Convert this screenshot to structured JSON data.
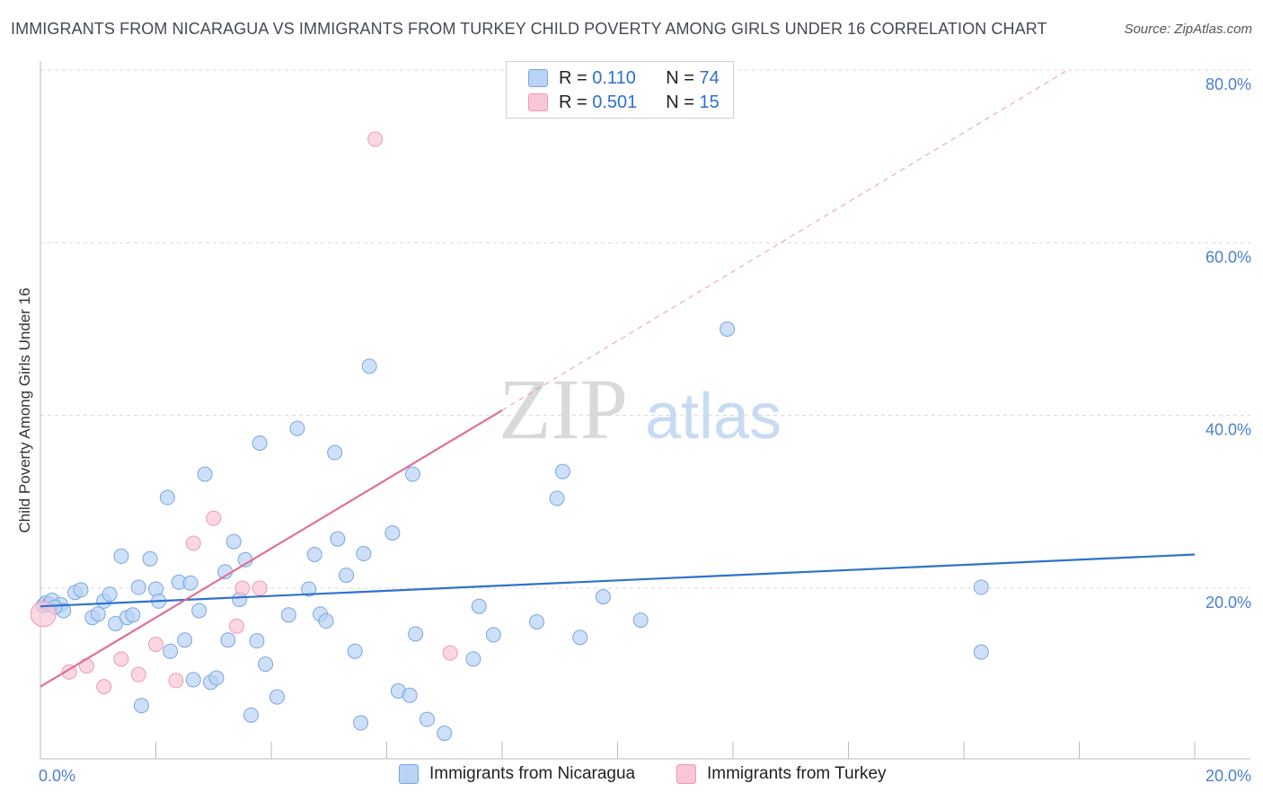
{
  "title": "IMMIGRANTS FROM NICARAGUA VS IMMIGRANTS FROM TURKEY CHILD POVERTY AMONG GIRLS UNDER 16 CORRELATION CHART",
  "source": "Source: ZipAtlas.com",
  "watermark": {
    "zip": "ZIP",
    "atlas": "atlas"
  },
  "colors": {
    "nicaragua_fill": "#b9d3f5",
    "nicaragua_stroke": "#7aa6e0",
    "nicaragua_line": "#2f72cc",
    "turkey_fill": "#f9c6d6",
    "turkey_stroke": "#ee9ab5",
    "turkey_line": "#e07098",
    "axis_label": "#4a7fd0",
    "grid": "#d8d8d8"
  },
  "legend": {
    "nicaragua": {
      "r_label": "R =",
      "r_value": "0.110",
      "n_label": "N =",
      "n_value": "74"
    },
    "turkey": {
      "r_label": "R =",
      "r_value": "0.501",
      "n_label": "N =",
      "n_value": "15"
    }
  },
  "chart_data": {
    "type": "scatter",
    "title": "IMMIGRANTS FROM NICARAGUA VS IMMIGRANTS FROM TURKEY CHILD POVERTY AMONG GIRLS UNDER 16 CORRELATION CHART",
    "xlabel": "",
    "ylabel": "Child Poverty Among Girls Under 16",
    "xlim": [
      0,
      20
    ],
    "ylim": [
      0,
      82
    ],
    "x_tick_labels": [
      "0.0%",
      "20.0%"
    ],
    "y_ticks": [
      20,
      40,
      60,
      80
    ],
    "y_tick_labels": [
      "20.0%",
      "40.0%",
      "60.0%",
      "80.0%"
    ],
    "grid": true,
    "legend_position": "top-center",
    "series": [
      {
        "name": "Immigrants from Nicaragua",
        "r": 0.11,
        "n": 74,
        "trend": {
          "x": [
            0,
            20
          ],
          "y": [
            17.9,
            23.9
          ]
        },
        "points": [
          [
            0.05,
            18.0
          ],
          [
            0.1,
            18.3
          ],
          [
            0.15,
            18.1
          ],
          [
            0.2,
            18.6
          ],
          [
            0.35,
            18.1
          ],
          [
            0.4,
            17.4
          ],
          [
            0.6,
            19.5
          ],
          [
            0.7,
            19.8
          ],
          [
            0.9,
            16.6
          ],
          [
            1.0,
            17.0
          ],
          [
            1.1,
            18.5
          ],
          [
            1.2,
            19.3
          ],
          [
            1.3,
            15.9
          ],
          [
            1.4,
            23.7
          ],
          [
            1.5,
            16.6
          ],
          [
            1.6,
            16.9
          ],
          [
            1.7,
            20.1
          ],
          [
            1.75,
            6.4
          ],
          [
            1.9,
            23.4
          ],
          [
            2.0,
            19.9
          ],
          [
            2.05,
            18.5
          ],
          [
            2.2,
            30.5
          ],
          [
            2.25,
            12.7
          ],
          [
            2.4,
            20.7
          ],
          [
            2.5,
            14.0
          ],
          [
            2.6,
            20.6
          ],
          [
            2.65,
            9.4
          ],
          [
            2.75,
            17.4
          ],
          [
            2.85,
            33.2
          ],
          [
            2.95,
            9.1
          ],
          [
            3.05,
            9.6
          ],
          [
            3.2,
            21.9
          ],
          [
            3.25,
            14.0
          ],
          [
            3.35,
            25.4
          ],
          [
            3.45,
            18.7
          ],
          [
            3.55,
            23.3
          ],
          [
            3.65,
            5.3
          ],
          [
            3.75,
            13.9
          ],
          [
            3.8,
            36.8
          ],
          [
            3.9,
            11.2
          ],
          [
            4.1,
            7.4
          ],
          [
            4.3,
            16.9
          ],
          [
            4.45,
            38.5
          ],
          [
            4.65,
            19.9
          ],
          [
            4.75,
            23.9
          ],
          [
            4.85,
            17.0
          ],
          [
            4.95,
            16.2
          ],
          [
            5.1,
            35.7
          ],
          [
            5.15,
            25.7
          ],
          [
            5.3,
            21.5
          ],
          [
            5.45,
            12.7
          ],
          [
            5.55,
            4.4
          ],
          [
            5.6,
            24.0
          ],
          [
            5.7,
            45.7
          ],
          [
            6.1,
            26.4
          ],
          [
            6.2,
            8.1
          ],
          [
            6.4,
            7.6
          ],
          [
            6.45,
            33.2
          ],
          [
            6.5,
            14.7
          ],
          [
            6.7,
            4.8
          ],
          [
            7.0,
            3.2
          ],
          [
            7.5,
            11.8
          ],
          [
            7.6,
            17.9
          ],
          [
            7.85,
            14.6
          ],
          [
            8.6,
            16.1
          ],
          [
            8.95,
            30.4
          ],
          [
            9.05,
            33.5
          ],
          [
            9.35,
            14.3
          ],
          [
            9.75,
            19.0
          ],
          [
            10.4,
            16.3
          ],
          [
            11.9,
            50.0
          ],
          [
            16.3,
            20.1
          ],
          [
            16.3,
            12.6
          ],
          [
            0.25,
            17.8
          ]
        ]
      },
      {
        "name": "Immigrants from Turkey",
        "r": 0.501,
        "n": 15,
        "trend_solid": {
          "x": [
            0,
            8
          ],
          "y": [
            8.6,
            40.6
          ]
        },
        "trend_dashed": {
          "x": [
            8,
            17.8
          ],
          "y": [
            40.6,
            80.0
          ]
        },
        "points": [
          [
            0.05,
            17.0
          ],
          [
            0.5,
            10.3
          ],
          [
            0.8,
            11.0
          ],
          [
            1.1,
            8.6
          ],
          [
            1.4,
            11.8
          ],
          [
            1.7,
            10.0
          ],
          [
            2.0,
            13.5
          ],
          [
            2.35,
            9.3
          ],
          [
            2.65,
            25.2
          ],
          [
            3.0,
            28.1
          ],
          [
            3.4,
            15.6
          ],
          [
            3.5,
            20.0
          ],
          [
            3.8,
            20.0
          ],
          [
            5.8,
            72.0
          ],
          [
            7.1,
            12.5
          ]
        ]
      }
    ]
  },
  "bottom_legend": {
    "nicaragua": "Immigrants from Nicaragua",
    "turkey": "Immigrants from Turkey"
  }
}
